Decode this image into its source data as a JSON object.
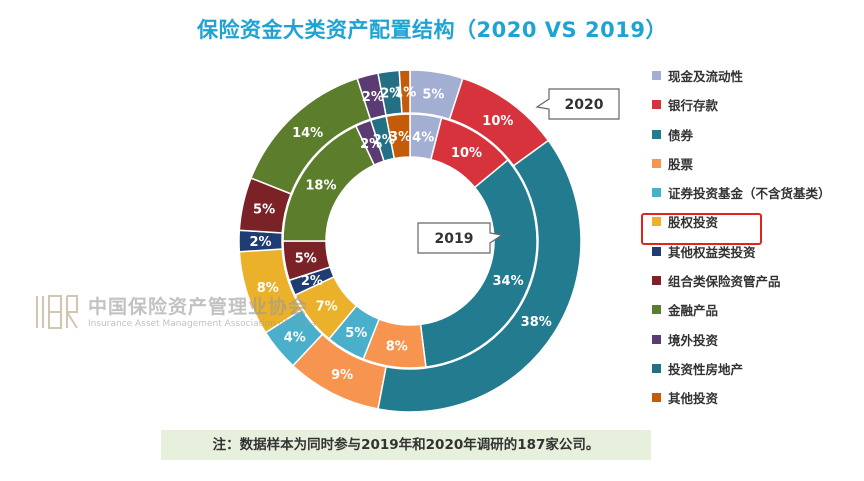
{
  "chart_data": {
    "type": "pie",
    "title": "保险资金大类资产配置结构（2020 VS 2019）",
    "categories": [
      "现金及流动性",
      "银行存款",
      "债券",
      "股票",
      "证券投资基金（不含货基类）",
      "股权投资",
      "其他权益类投资",
      "组合类保险资管产品",
      "金融产品",
      "境外投资",
      "投资性房地产",
      "其他投资"
    ],
    "colors": [
      "#a3aed3",
      "#d7333c",
      "#237b8f",
      "#f7944f",
      "#4aafcb",
      "#ebb12a",
      "#1f3d73",
      "#7b2227",
      "#5b7d2c",
      "#5a3c73",
      "#236f84",
      "#c35b09"
    ],
    "series": [
      {
        "name": "2020",
        "ring": "outer",
        "values": [
          5,
          10,
          38,
          9,
          4,
          8,
          2,
          5,
          14,
          2,
          2,
          1
        ],
        "labels": [
          "5%",
          "10%",
          "38%",
          "9%",
          "4%",
          "8%",
          "2%",
          "5%",
          "14%",
          "2%",
          "2%",
          "1%"
        ]
      },
      {
        "name": "2019",
        "ring": "inner",
        "values": [
          4,
          10,
          34,
          8,
          5,
          7,
          2,
          5,
          18,
          2,
          2,
          3
        ],
        "labels": [
          "4%",
          "10%",
          "34%",
          "8%",
          "5%",
          "7%",
          "2%",
          "5%",
          "18%",
          "2%",
          "2%",
          "3%"
        ]
      }
    ],
    "legend_position": "right"
  },
  "legend_highlight_index": 5,
  "watermark": {
    "name_cn": "中国保险资产管理业协会",
    "name_en": "Insurance Asset Management Association of China"
  },
  "note": "注：数据样本为同时参与2019年和2020年调研的187家公司。"
}
